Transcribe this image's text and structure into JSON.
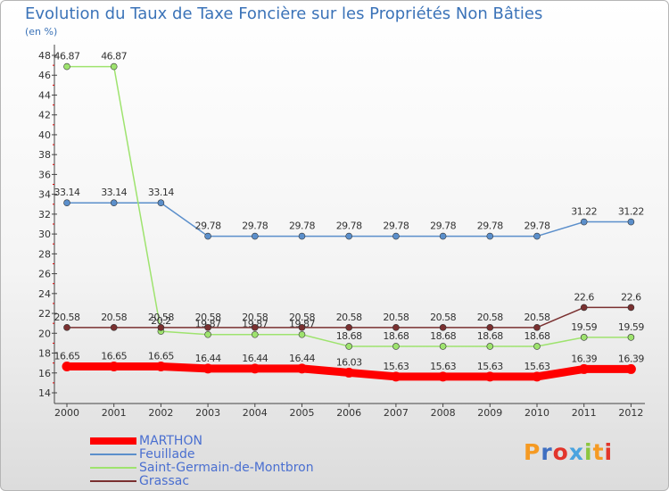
{
  "chart_data": {
    "type": "line",
    "title": "Evolution du Taux de Taxe Foncière sur les Propriétés Non Bâties",
    "unit_label": "(en %)",
    "xlabel": "",
    "ylabel": "",
    "x": [
      "2000",
      "2001",
      "2002",
      "2003",
      "2004",
      "2005",
      "2006",
      "2007",
      "2008",
      "2009",
      "2010",
      "2011",
      "2012"
    ],
    "ylim": [
      14,
      48
    ],
    "yticks": [
      "14",
      "16",
      "18",
      "20",
      "22",
      "24",
      "26",
      "28",
      "30",
      "32",
      "34",
      "36",
      "38",
      "40",
      "42",
      "44",
      "46",
      "48"
    ],
    "grid": false,
    "series": [
      {
        "name": "MARTHON",
        "color": "#ff0000",
        "values": [
          16.65,
          16.65,
          16.65,
          16.44,
          16.44,
          16.44,
          16.03,
          15.63,
          15.63,
          15.63,
          15.63,
          16.39,
          16.39
        ],
        "labels": [
          "16.65",
          "16.65",
          "16.65",
          "16.44",
          "16.44",
          "16.44",
          "16.03",
          "15.63",
          "15.63",
          "15.63",
          "15.63",
          "16.39",
          "16.39"
        ]
      },
      {
        "name": "Feuillade",
        "color": "#5b8fcb",
        "values": [
          33.14,
          33.14,
          33.14,
          29.78,
          29.78,
          29.78,
          29.78,
          29.78,
          29.78,
          29.78,
          29.78,
          31.22,
          31.22
        ],
        "labels": [
          "33.14",
          "33.14",
          "33.14",
          "29.78",
          "29.78",
          "29.78",
          "29.78",
          "29.78",
          "29.78",
          "29.78",
          "29.78",
          "31.22",
          "31.22"
        ]
      },
      {
        "name": "Saint-Germain-de-Montbron",
        "color": "#9ee36e",
        "values": [
          46.87,
          46.87,
          20.2,
          19.87,
          19.87,
          19.87,
          18.68,
          18.68,
          18.68,
          18.68,
          18.68,
          19.59,
          19.59
        ],
        "labels": [
          "46.87",
          "46.87",
          "20.2",
          "19.87",
          "19.87",
          "19.87",
          "18.68",
          "18.68",
          "18.68",
          "18.68",
          "18.68",
          "19.59",
          "19.59"
        ]
      },
      {
        "name": "Grassac",
        "color": "#7a3030",
        "values": [
          20.58,
          20.58,
          20.58,
          20.58,
          20.58,
          20.58,
          20.58,
          20.58,
          20.58,
          20.58,
          20.58,
          22.6,
          22.6
        ],
        "labels": [
          "20.58",
          "20.58",
          "20.58",
          "20.58",
          "20.58",
          "20.58",
          "20.58",
          "20.58",
          "20.58",
          "20.58",
          "20.58",
          "22.6",
          "22.6"
        ]
      }
    ]
  },
  "logo": {
    "text": "Proxiti",
    "colors": [
      "#f59a23",
      "#3f6fc1",
      "#e2352b",
      "#4aa3df",
      "#8cc63f",
      "#f59a23",
      "#e2352b"
    ]
  }
}
